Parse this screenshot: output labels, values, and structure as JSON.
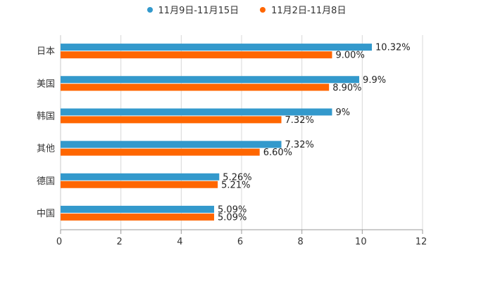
{
  "chart_data": {
    "type": "bar",
    "orientation": "horizontal",
    "title": "",
    "xlabel": "",
    "ylabel": "",
    "categories": [
      "日本",
      "美国",
      "韩国",
      "其他",
      "德国",
      "中国"
    ],
    "series": [
      {
        "name": "11月9日-11月15日",
        "color": "#3399CC",
        "values": [
          10.32,
          9.9,
          9,
          7.32,
          5.26,
          5.09
        ],
        "labels": [
          "10.32%",
          "9.9%",
          "9%",
          "7.32%",
          "5.26%",
          "5.09%"
        ]
      },
      {
        "name": "11月2日-11月8日",
        "color": "#FF6600",
        "values": [
          9.0,
          8.9,
          7.32,
          6.6,
          5.21,
          5.09
        ],
        "labels": [
          "9.00%",
          "8.90%",
          "7.32%",
          "6.60%",
          "5.21%",
          "5.09%"
        ]
      }
    ],
    "xlim": [
      0,
      12
    ],
    "xticks": [
      0,
      2,
      4,
      6,
      8,
      10,
      12
    ],
    "xtick_labels": [
      "0",
      "2",
      "4",
      "6",
      "8",
      "10",
      "12"
    ],
    "grid": true,
    "legend_position": "top-center"
  }
}
